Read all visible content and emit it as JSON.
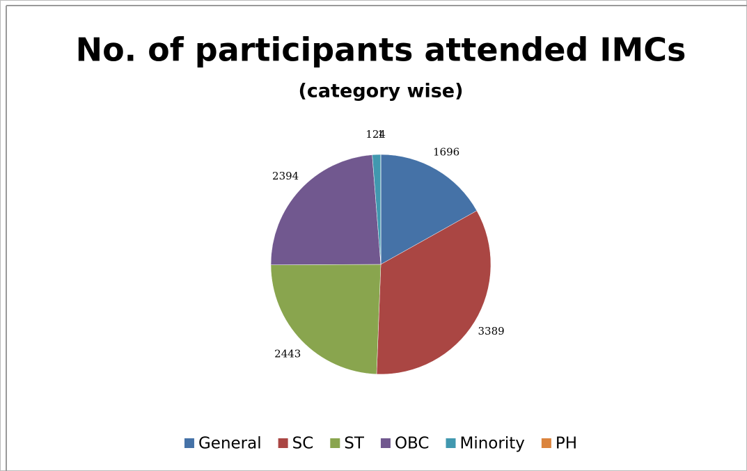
{
  "chart_data": {
    "type": "pie",
    "title": "No. of participants attended IMCs",
    "subtitle": "(category wise)",
    "categories": [
      "General",
      "SC",
      "ST",
      "OBC",
      "Minority",
      "PH"
    ],
    "values": [
      1696,
      3389,
      2443,
      2394,
      124,
      1
    ],
    "colors": [
      "#4572a7",
      "#aa4643",
      "#89a54e",
      "#71588f",
      "#4198af",
      "#db843d"
    ],
    "legend": "bottom"
  }
}
